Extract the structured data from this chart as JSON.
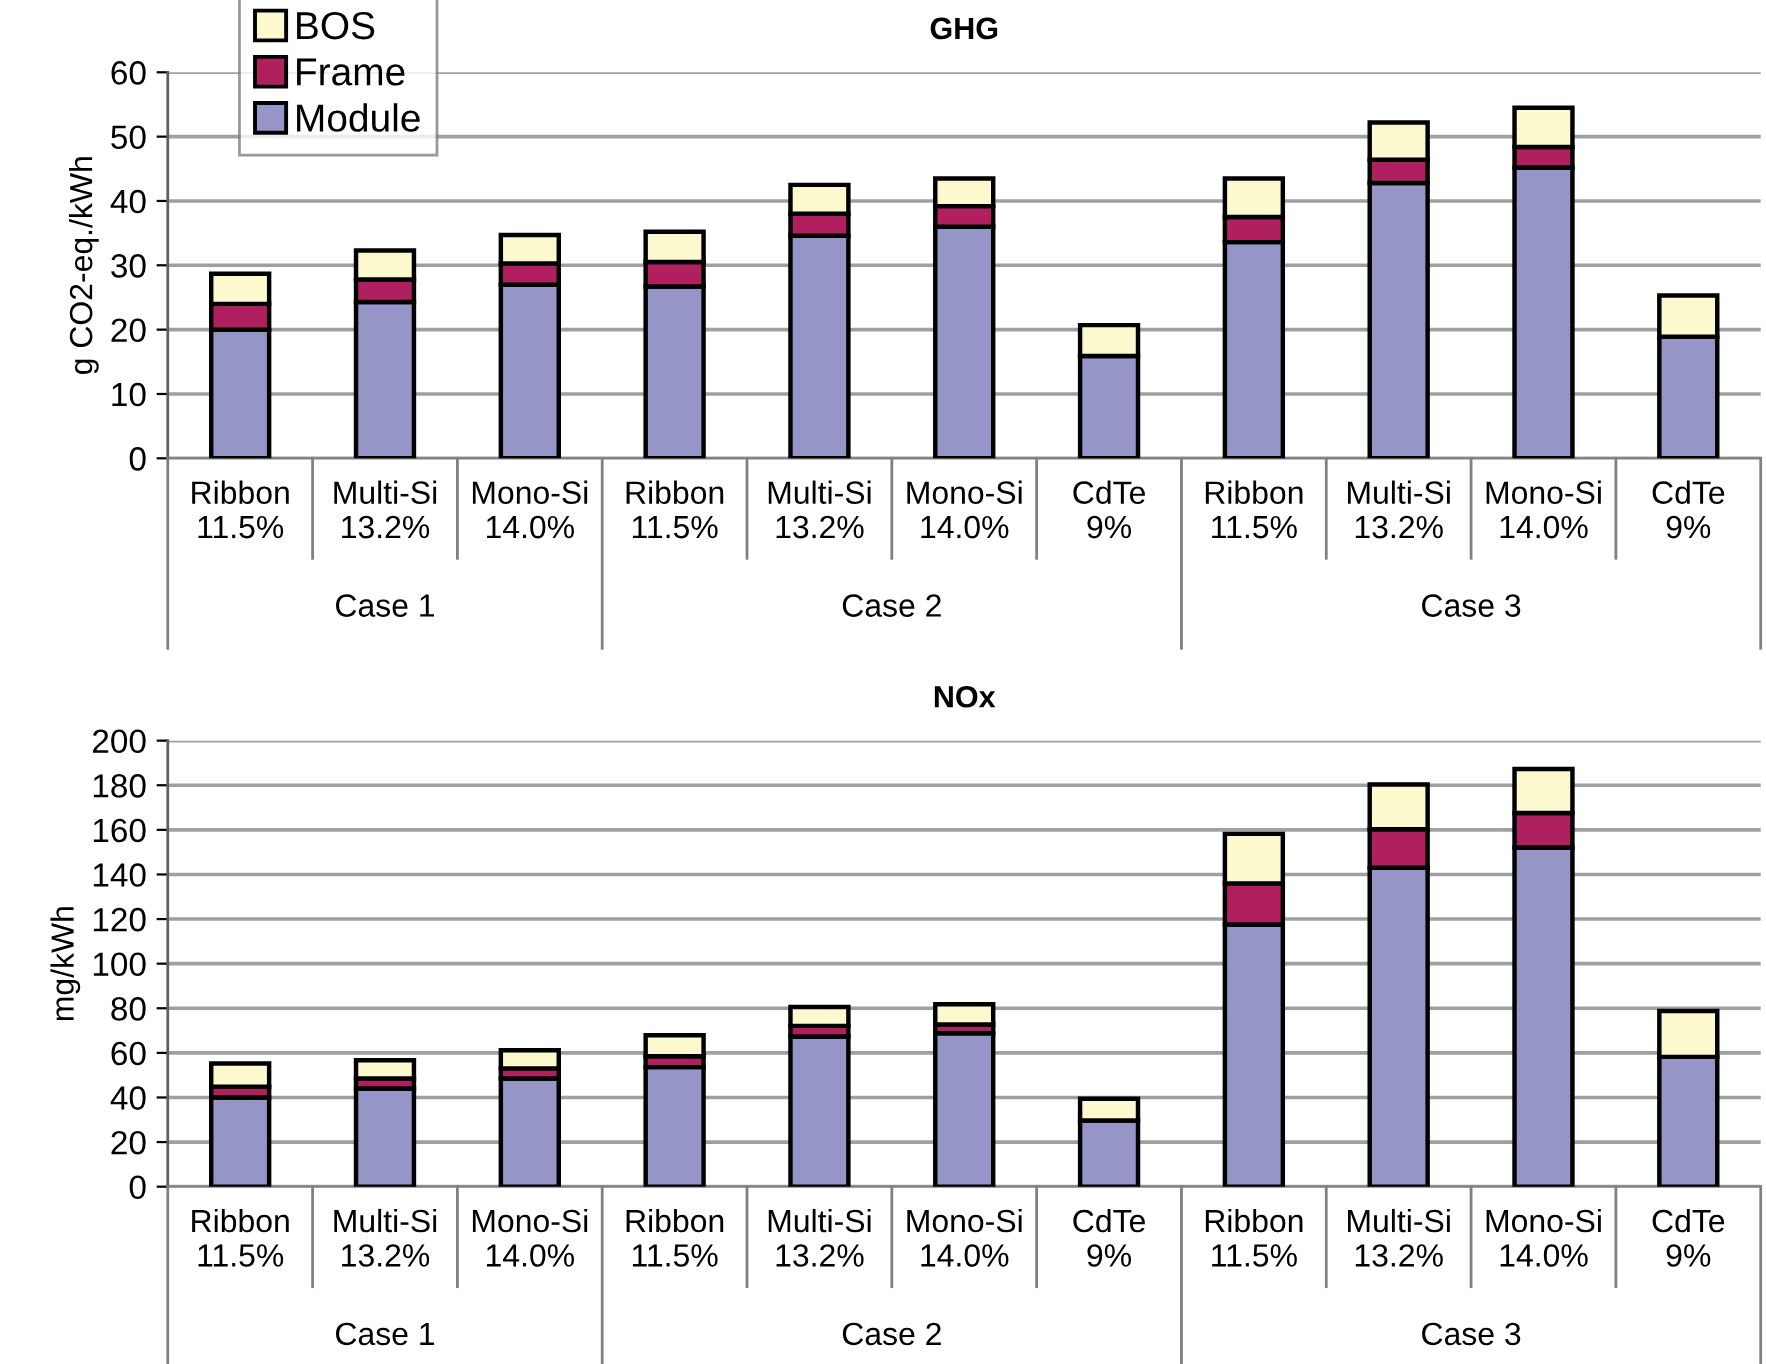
{
  "chart_data": [
    {
      "type": "bar",
      "title": "GHG",
      "ylabel": "g CO2-eq./kWh",
      "stacked": true,
      "categories": [
        "Ribbon\n11.5%",
        "Multi-Si\n13.2%",
        "Mono-Si\n14.0%",
        "Ribbon\n11.5%",
        "Multi-Si\n13.2%",
        "Mono-Si\n14.0%",
        "CdTe\n9%",
        "Ribbon\n11.5%",
        "Multi-Si\n13.2%",
        "Mono-Si\n14.0%",
        "CdTe\n9%"
      ],
      "series": [
        {
          "name": "Module",
          "color": "#9595c8",
          "values": [
            20,
            24.3,
            27,
            26.7,
            34.6,
            36.0,
            15.9,
            33.6,
            42.8,
            45.2,
            18.9
          ]
        },
        {
          "name": "Frame",
          "color": "#b0205e",
          "values": [
            4,
            3.5,
            3.3,
            3.8,
            3.4,
            3.2,
            null,
            3.9,
            3.6,
            3.2,
            null
          ]
        },
        {
          "name": "BOS",
          "color": "#fcf9cf",
          "values": [
            4.7,
            4.5,
            4.4,
            4.7,
            4.5,
            4.3,
            4.8,
            6.0,
            5.8,
            6.1,
            6.4
          ]
        }
      ],
      "ylim": [
        0,
        60
      ],
      "yticks": [
        0,
        10,
        20,
        30,
        40,
        50,
        60
      ],
      "grid": "y",
      "legend": "top left",
      "annotations": [
        "Case 1",
        "Case 2",
        "Case 3"
      ]
    },
    {
      "type": "bar",
      "title": "NOx",
      "ylabel": "mg/kWh",
      "stacked": true,
      "categories": [
        "Ribbon\n11.5%",
        "Multi-Si\n13.2%",
        "Mono-Si\n14.0%",
        "Ribbon\n11.5%",
        "Multi-Si\n13.2%",
        "Mono-Si\n14.0%",
        "CdTe\n9%",
        "Ribbon\n11.5%",
        "Multi-Si\n13.2%",
        "Mono-Si\n14.0%",
        "CdTe\n9%"
      ],
      "series": [
        {
          "color": "#9595c8",
          "values": [
            40,
            44,
            48.5,
            53.6,
            67.3,
            68.8,
            29.7,
            117.6,
            143,
            152.1,
            58.2
          ]
        },
        {
          "color": "#b0205e",
          "values": [
            4.8,
            4.5,
            4.5,
            4.9,
            4.8,
            3.9,
            null,
            18.4,
            17.3,
            15.5,
            null
          ]
        },
        {
          "color": "#fcf9cf",
          "values": [
            10.4,
            8.2,
            8.2,
            9.4,
            8.5,
            9.1,
            9.7,
            22.2,
            20,
            19.7,
            20.6
          ]
        }
      ],
      "ylim": [
        0,
        200
      ],
      "yticks": [
        0,
        20,
        40,
        60,
        80,
        100,
        120,
        140,
        160,
        180,
        200
      ],
      "grid": "y",
      "annotations": [
        "Case 1",
        "Case 2",
        "Case 3"
      ]
    }
  ]
}
